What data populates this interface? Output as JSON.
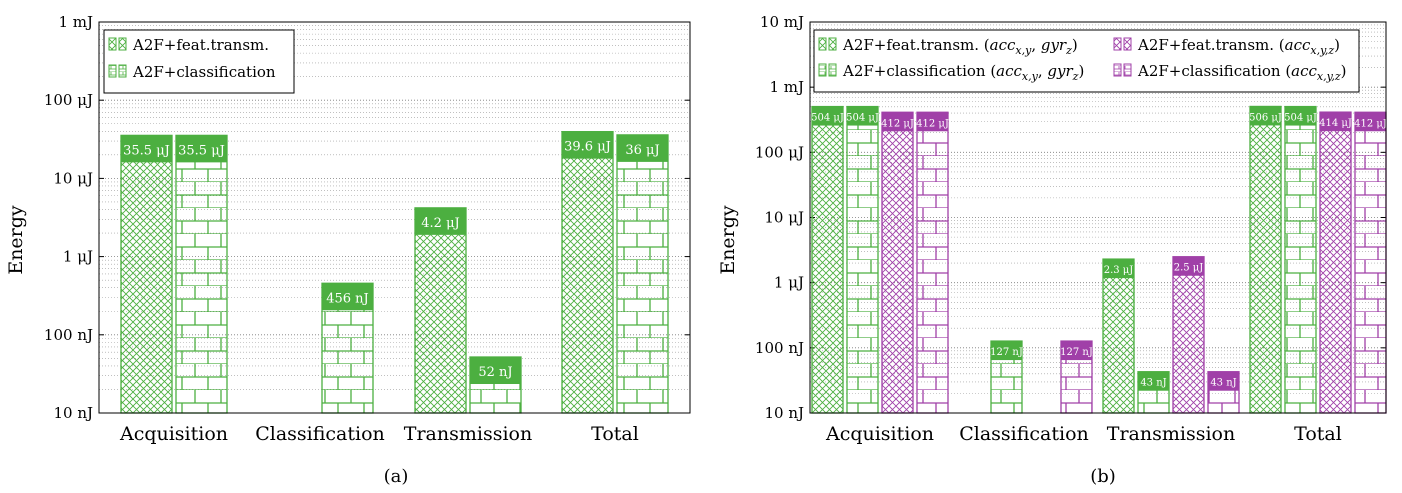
{
  "colors": {
    "green": "#4caf40",
    "purple": "#a040a8"
  },
  "y_axis_label": "Energy",
  "chart_data": [
    {
      "type": "bar",
      "panel_label": "(a)",
      "ylabel": "Energy",
      "yscale": "log",
      "ylim": [
        1e-08,
        0.001
      ],
      "yticks": [
        {
          "value": 0.001,
          "label": "1 mJ"
        },
        {
          "value": 0.0001,
          "label": "100 μJ"
        },
        {
          "value": 1e-05,
          "label": "10 μJ"
        },
        {
          "value": 1e-06,
          "label": "1 μJ"
        },
        {
          "value": 1e-07,
          "label": "100 nJ"
        },
        {
          "value": 1e-08,
          "label": "10 nJ"
        }
      ],
      "categories": [
        "Acquisition",
        "Classification",
        "Transmission",
        "Total"
      ],
      "legend": {
        "position": "top-left",
        "entries": [
          "A2F+feat.transm.",
          "A2F+classification"
        ]
      },
      "grid": true,
      "series": [
        {
          "name": "A2F+feat.transm.",
          "color": "green",
          "pattern": "crosshatch",
          "values": [
            3.55e-05,
            null,
            4.2e-06,
            3.96e-05
          ],
          "labels": [
            "35.5 μJ",
            "",
            "4.2 μJ",
            "39.6 μJ"
          ]
        },
        {
          "name": "A2F+classification",
          "color": "green",
          "pattern": "bricks",
          "values": [
            3.55e-05,
            4.56e-07,
            5.2e-08,
            3.6e-05
          ],
          "labels": [
            "35.5 μJ",
            "456 nJ",
            "52 nJ",
            "36 μJ"
          ]
        }
      ]
    },
    {
      "type": "bar",
      "panel_label": "(b)",
      "ylabel": "Energy",
      "yscale": "log",
      "ylim": [
        1e-08,
        0.01
      ],
      "yticks": [
        {
          "value": 0.01,
          "label": "10 mJ"
        },
        {
          "value": 0.001,
          "label": "1 mJ"
        },
        {
          "value": 0.0001,
          "label": "100 μJ"
        },
        {
          "value": 1e-05,
          "label": "10 μJ"
        },
        {
          "value": 1e-06,
          "label": "1 μJ"
        },
        {
          "value": 1e-07,
          "label": "100 nJ"
        },
        {
          "value": 1e-08,
          "label": "10 nJ"
        }
      ],
      "categories": [
        "Acquisition",
        "Classification",
        "Transmission",
        "Total"
      ],
      "legend": {
        "position": "top-left",
        "entries": [
          {
            "main": "A2F+feat.transm. (",
            "italic": "acc",
            "sub": "x,y",
            "sep": ", ",
            "italic2": "gyr",
            "sub2": "z",
            "end": ")"
          },
          {
            "main": "A2F+classification (",
            "italic": "acc",
            "sub": "x,y",
            "sep": ", ",
            "italic2": "gyr",
            "sub2": "z",
            "end": ")"
          },
          {
            "main": "A2F+feat.transm. (",
            "italic": "acc",
            "sub": "x,y,z",
            "sep": "",
            "italic2": "",
            "sub2": "",
            "end": ")"
          },
          {
            "main": "A2F+classification (",
            "italic": "acc",
            "sub": "x,y,z",
            "sep": "",
            "italic2": "",
            "sub2": "",
            "end": ")"
          }
        ]
      },
      "grid": true,
      "series": [
        {
          "name": "A2F+feat.transm. (accx,y, gyrz)",
          "color": "green",
          "pattern": "crosshatch",
          "values": [
            0.000504,
            null,
            2.3e-06,
            0.000506
          ],
          "labels": [
            "504 μJ",
            "",
            "2.3 μJ",
            "506 μJ"
          ]
        },
        {
          "name": "A2F+classification (accx,y, gyrz)",
          "color": "green",
          "pattern": "bricks",
          "values": [
            0.000504,
            1.27e-07,
            4.3e-08,
            0.000504
          ],
          "labels": [
            "504 μJ",
            "127 nJ",
            "43 nJ",
            "504 μJ"
          ]
        },
        {
          "name": "A2F+feat.transm. (accx,y,z)",
          "color": "purple",
          "pattern": "crosshatch",
          "values": [
            0.000412,
            null,
            2.5e-06,
            0.000414
          ],
          "labels": [
            "412 μJ",
            "",
            "2.5 μJ",
            "414 μJ"
          ]
        },
        {
          "name": "A2F+classification (accx,y,z)",
          "color": "purple",
          "pattern": "bricks",
          "values": [
            0.000412,
            1.27e-07,
            4.3e-08,
            0.000412
          ],
          "labels": [
            "412 μJ",
            "127 nJ",
            "43 nJ",
            "412 μJ"
          ]
        }
      ]
    }
  ]
}
